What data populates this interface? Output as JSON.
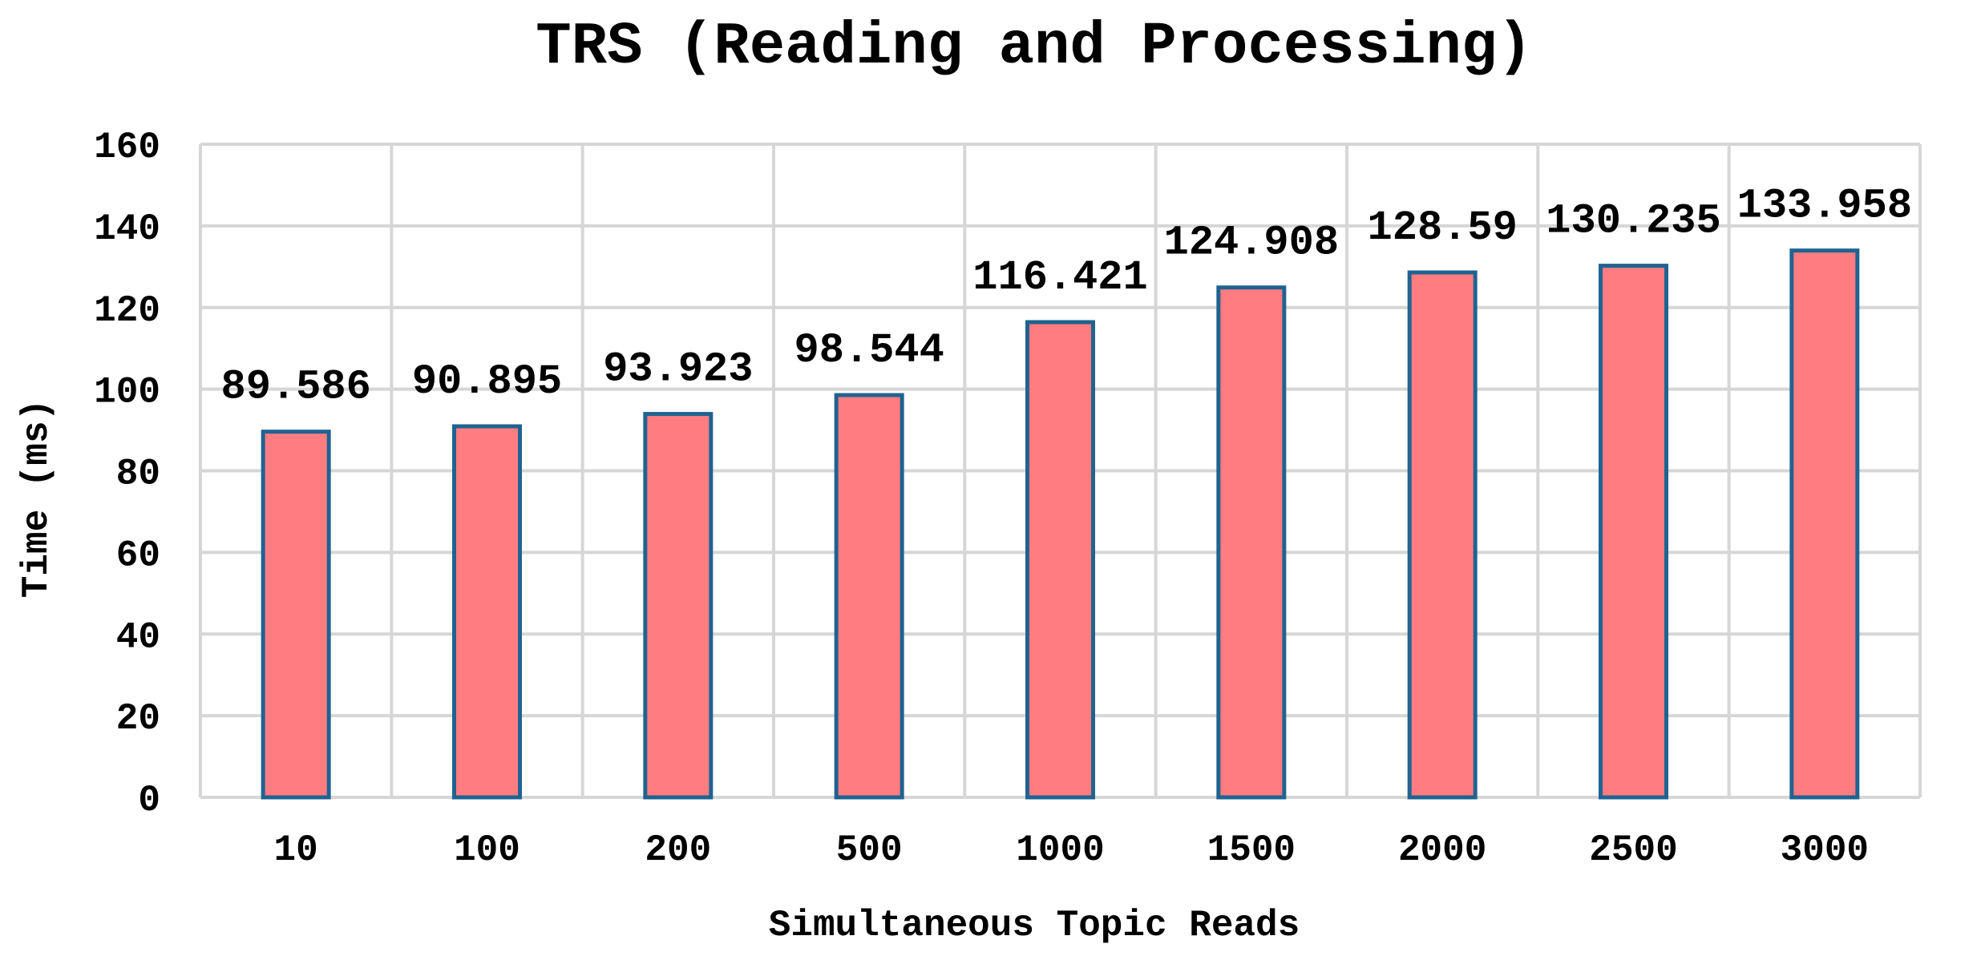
{
  "chart_data": {
    "type": "bar",
    "title": "TRS (Reading and Processing)",
    "xlabel": "Simultaneous Topic Reads",
    "ylabel": "Time (ms)",
    "categories": [
      "10",
      "100",
      "200",
      "500",
      "1000",
      "1500",
      "2000",
      "2500",
      "3000"
    ],
    "values": [
      89.586,
      90.895,
      93.923,
      98.544,
      116.421,
      124.908,
      128.59,
      130.235,
      133.958
    ],
    "value_labels": [
      "89.586",
      "90.895",
      "93.923",
      "98.544",
      "116.421",
      "124.908",
      "128.59",
      "130.235",
      "133.958"
    ],
    "ylim": [
      0,
      160
    ],
    "yticks": [
      "0",
      "20",
      "40",
      "60",
      "80",
      "100",
      "120",
      "140",
      "160"
    ],
    "grid": true,
    "legend": "none",
    "colors": {
      "bar_fill": "#ff7c80",
      "bar_stroke": "#1f6391",
      "grid": "#d6d6d6"
    }
  }
}
